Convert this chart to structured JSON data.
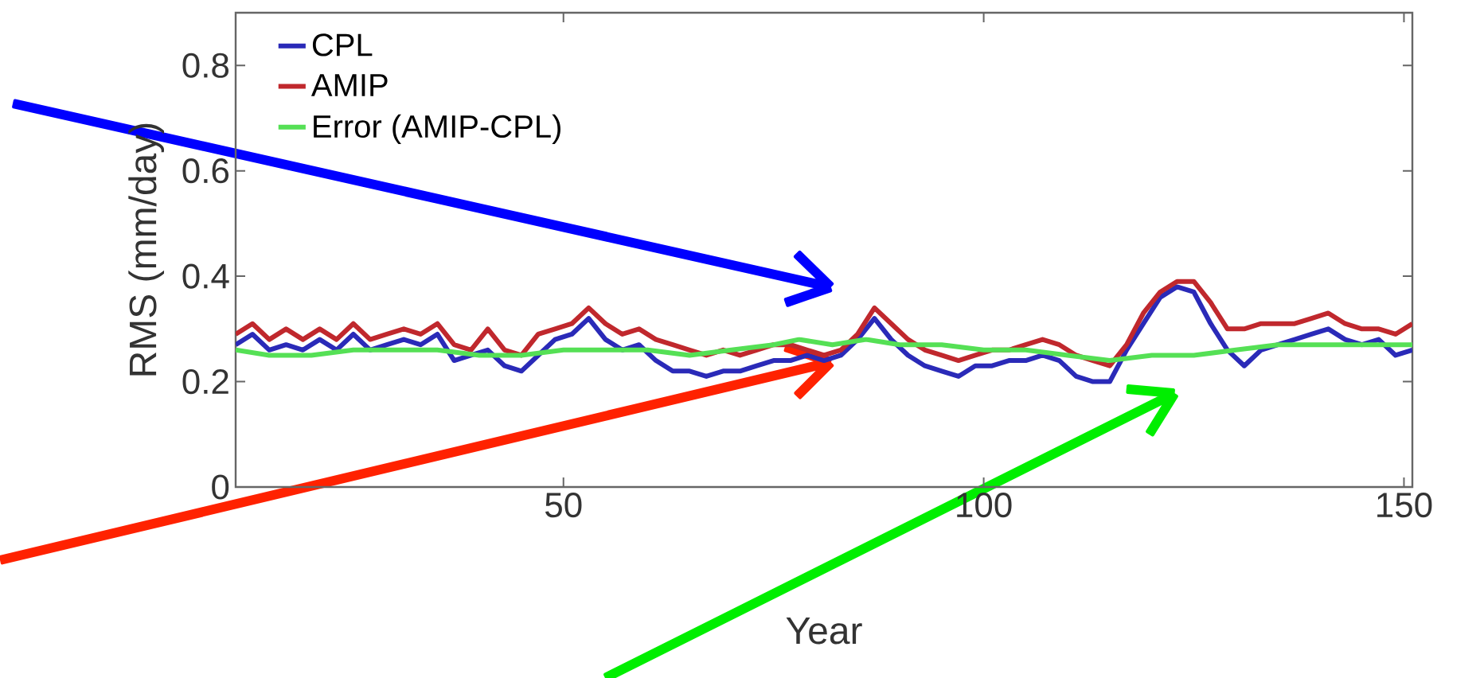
{
  "chart_data": {
    "type": "line",
    "xlabel": "Year",
    "ylabel": "RMS (mm/day)",
    "x": [
      11,
      13,
      15,
      17,
      19,
      21,
      23,
      25,
      27,
      29,
      31,
      33,
      35,
      37,
      39,
      41,
      43,
      45,
      47,
      49,
      51,
      53,
      55,
      57,
      59,
      61,
      63,
      65,
      67,
      69,
      71,
      73,
      75,
      77,
      79,
      81,
      83,
      85,
      87,
      89,
      91,
      93,
      95,
      97,
      99,
      101,
      103,
      105,
      107,
      109,
      111,
      113,
      115,
      117,
      119,
      121,
      123,
      125,
      127,
      129,
      131,
      133,
      135,
      137,
      139,
      141,
      143,
      145,
      147,
      149,
      151
    ],
    "series": [
      {
        "name": "CPL",
        "color": "#2a2ab8",
        "values": [
          0.27,
          0.29,
          0.26,
          0.27,
          0.26,
          0.28,
          0.26,
          0.29,
          0.26,
          0.27,
          0.28,
          0.27,
          0.29,
          0.24,
          0.25,
          0.26,
          0.23,
          0.22,
          0.25,
          0.28,
          0.29,
          0.32,
          0.28,
          0.26,
          0.27,
          0.24,
          0.22,
          0.22,
          0.21,
          0.22,
          0.22,
          0.23,
          0.24,
          0.24,
          0.25,
          0.24,
          0.25,
          0.28,
          0.32,
          0.28,
          0.25,
          0.23,
          0.22,
          0.21,
          0.23,
          0.23,
          0.24,
          0.24,
          0.25,
          0.24,
          0.21,
          0.2,
          0.2,
          0.26,
          0.31,
          0.36,
          0.38,
          0.37,
          0.31,
          0.26,
          0.23,
          0.26,
          0.27,
          0.28,
          0.29,
          0.3,
          0.28,
          0.27,
          0.28,
          0.25,
          0.26
        ]
      },
      {
        "name": "AMIP",
        "color": "#c0282d",
        "values": [
          0.29,
          0.31,
          0.28,
          0.3,
          0.28,
          0.3,
          0.28,
          0.31,
          0.28,
          0.29,
          0.3,
          0.29,
          0.31,
          0.27,
          0.26,
          0.3,
          0.26,
          0.25,
          0.29,
          0.3,
          0.31,
          0.34,
          0.31,
          0.29,
          0.3,
          0.28,
          0.27,
          0.26,
          0.25,
          0.26,
          0.25,
          0.26,
          0.27,
          0.27,
          0.26,
          0.25,
          0.26,
          0.29,
          0.34,
          0.31,
          0.28,
          0.26,
          0.25,
          0.24,
          0.25,
          0.26,
          0.26,
          0.27,
          0.28,
          0.27,
          0.25,
          0.24,
          0.23,
          0.27,
          0.33,
          0.37,
          0.39,
          0.39,
          0.35,
          0.3,
          0.3,
          0.31,
          0.31,
          0.31,
          0.32,
          0.33,
          0.31,
          0.3,
          0.3,
          0.29,
          0.31
        ]
      },
      {
        "name": "Error (AMIP-CPL)",
        "color": "#55e055",
        "x": [
          11,
          15,
          20,
          25,
          30,
          35,
          40,
          45,
          50,
          55,
          60,
          65,
          70,
          75,
          78,
          82,
          86,
          90,
          95,
          100,
          105,
          110,
          115,
          120,
          125,
          130,
          135,
          140,
          145,
          151
        ],
        "values": [
          0.26,
          0.25,
          0.25,
          0.26,
          0.26,
          0.26,
          0.25,
          0.25,
          0.26,
          0.26,
          0.26,
          0.25,
          0.26,
          0.27,
          0.28,
          0.27,
          0.28,
          0.27,
          0.27,
          0.26,
          0.26,
          0.25,
          0.24,
          0.25,
          0.25,
          0.26,
          0.27,
          0.27,
          0.27,
          0.27
        ]
      }
    ],
    "xlim": [
      11,
      151
    ],
    "xticks": [
      50,
      100,
      150
    ],
    "ylim": [
      0,
      0.9
    ],
    "yticks": [
      0,
      0.2,
      0.4,
      0.6,
      0.8
    ],
    "legend": "top left",
    "grid": false,
    "line_style": "solid",
    "marker": "none"
  }
}
